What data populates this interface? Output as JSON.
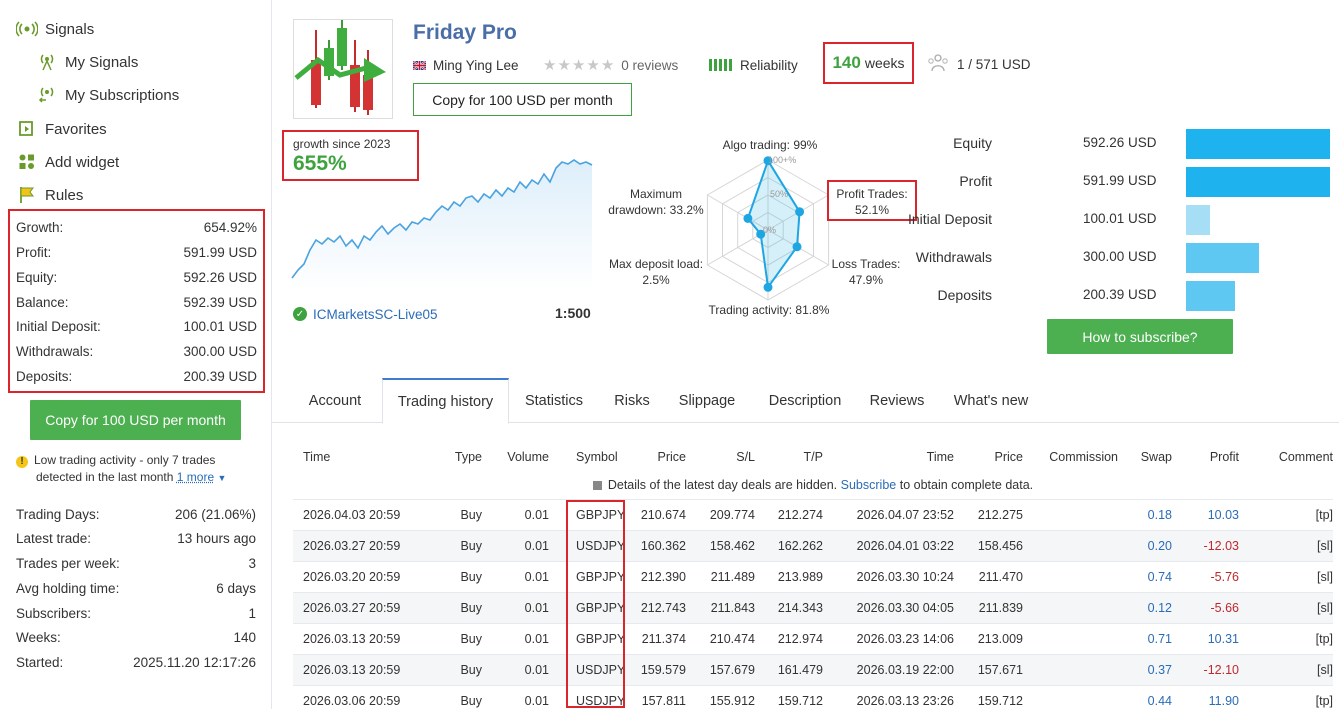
{
  "sidebar": {
    "nav": [
      {
        "label": "Signals",
        "icon": "signals-icon"
      },
      {
        "label": "My Signals",
        "icon": "my-signals-icon"
      },
      {
        "label": "My Subscriptions",
        "icon": "my-subscriptions-icon"
      },
      {
        "label": "Favorites",
        "icon": "favorites-icon"
      },
      {
        "label": "Add widget",
        "icon": "widget-icon"
      },
      {
        "label": "Rules",
        "icon": "rules-icon"
      }
    ],
    "stats": [
      {
        "label": "Growth:",
        "value": "654.92%"
      },
      {
        "label": "Profit:",
        "value": "591.99 USD"
      },
      {
        "label": "Equity:",
        "value": "592.26 USD"
      },
      {
        "label": "Balance:",
        "value": "592.39 USD"
      },
      {
        "label": "Initial Deposit:",
        "value": "100.01 USD"
      },
      {
        "label": "Withdrawals:",
        "value": "300.00 USD"
      },
      {
        "label": "Deposits:",
        "value": "200.39 USD"
      }
    ],
    "copy_button": "Copy for 100 USD per month",
    "low_activity_line1": "Low trading activity - only 7 trades",
    "low_activity_line2": "detected in the last month",
    "low_activity_more": "1 more",
    "info": [
      {
        "label": "Trading Days:",
        "value": "206 (21.06%)"
      },
      {
        "label": "Latest trade:",
        "value": "13 hours ago"
      },
      {
        "label": "Trades per week:",
        "value": "3"
      },
      {
        "label": "Avg holding time:",
        "value": "6 days"
      },
      {
        "label": "Subscribers:",
        "value": "1"
      },
      {
        "label": "Weeks:",
        "value": "140"
      },
      {
        "label": "Started:",
        "value": "2025.11.20 12:17:26"
      }
    ]
  },
  "header": {
    "title": "Friday Pro",
    "author": "Ming Ying Lee",
    "reviews": "0 reviews",
    "rating": 0,
    "reliability": "Reliability",
    "weeks_num": "140",
    "weeks_label": "weeks",
    "subscribers": "1 / 571 USD",
    "copy_button": "Copy for 100 USD per month"
  },
  "growth": {
    "label": "growth since 2023",
    "value": "655%",
    "server": "ICMarketsSC-Live05",
    "leverage": "1:500",
    "line_color": "#4aa3e0"
  },
  "radar": {
    "labels": {
      "algo": "Algo trading: 99%",
      "profit1": "Profit Trades:",
      "profit2": "52.1%",
      "loss1": "Loss Trades:",
      "loss2": "47.9%",
      "activity": "Trading activity: 81.8%",
      "load1": "Max deposit load:",
      "load2": "2.5%",
      "dd1": "Maximum",
      "dd2": "drawdown: 33.2%",
      "pct100": "100+%",
      "pct50": "50%",
      "pct0": "0%"
    },
    "values": [
      0.99,
      0.521,
      0.479,
      0.818,
      0.025,
      0.332
    ]
  },
  "summary": [
    {
      "label": "Equity",
      "value": "592.26 USD",
      "fraction": 1.0,
      "color": "#1eb3ee"
    },
    {
      "label": "Profit",
      "value": "591.99 USD",
      "fraction": 1.0,
      "color": "#1eb3ee"
    },
    {
      "label": "Initial Deposit",
      "value": "100.01 USD",
      "fraction": 0.169,
      "color": "#a6def6"
    },
    {
      "label": "Withdrawals",
      "value": "300.00 USD",
      "fraction": 0.507,
      "color": "#5fc8f2"
    },
    {
      "label": "Deposits",
      "value": "200.39 USD",
      "fraction": 0.338,
      "color": "#5fc8f2"
    }
  ],
  "how_to_subscribe": "How to subscribe?",
  "tabs": [
    "Account",
    "Trading history",
    "Statistics",
    "Risks",
    "Slippage",
    "Description",
    "Reviews",
    "What's new"
  ],
  "table": {
    "headers": [
      "Time",
      "Type",
      "Volume",
      "Symbol",
      "Price",
      "S/L",
      "T/P",
      "Time",
      "Price",
      "Commission",
      "Swap",
      "Profit",
      "Comment"
    ],
    "note_before": "Details of the latest day deals are hidden.",
    "note_link": "Subscribe",
    "note_after": "to obtain complete data.",
    "rows": [
      [
        "2026.04.03 20:59",
        "Buy",
        "0.01",
        "GBPJPY",
        "210.674",
        "209.774",
        "212.274",
        "2026.04.07 23:52",
        "212.275",
        "",
        "0.18",
        "10.03",
        "[tp]"
      ],
      [
        "2026.03.27 20:59",
        "Buy",
        "0.01",
        "USDJPY",
        "160.362",
        "158.462",
        "162.262",
        "2026.04.01 03:22",
        "158.456",
        "",
        "0.20",
        "-12.03",
        "[sl]"
      ],
      [
        "2026.03.20 20:59",
        "Buy",
        "0.01",
        "GBPJPY",
        "212.390",
        "211.489",
        "213.989",
        "2026.03.30 10:24",
        "211.470",
        "",
        "0.74",
        "-5.76",
        "[sl]"
      ],
      [
        "2026.03.27 20:59",
        "Buy",
        "0.01",
        "GBPJPY",
        "212.743",
        "211.843",
        "214.343",
        "2026.03.30 04:05",
        "211.839",
        "",
        "0.12",
        "-5.66",
        "[sl]"
      ],
      [
        "2026.03.13 20:59",
        "Buy",
        "0.01",
        "GBPJPY",
        "211.374",
        "210.474",
        "212.974",
        "2026.03.23 14:06",
        "213.009",
        "",
        "0.71",
        "10.31",
        "[tp]"
      ],
      [
        "2026.03.13 20:59",
        "Buy",
        "0.01",
        "USDJPY",
        "159.579",
        "157.679",
        "161.479",
        "2026.03.19 22:00",
        "157.671",
        "",
        "0.37",
        "-12.10",
        "[sl]"
      ],
      [
        "2026.03.06 20:59",
        "Buy",
        "0.01",
        "USDJPY",
        "157.811",
        "155.912",
        "159.712",
        "2026.03.13 23:26",
        "159.712",
        "",
        "0.44",
        "11.90",
        "[tp]"
      ]
    ]
  }
}
